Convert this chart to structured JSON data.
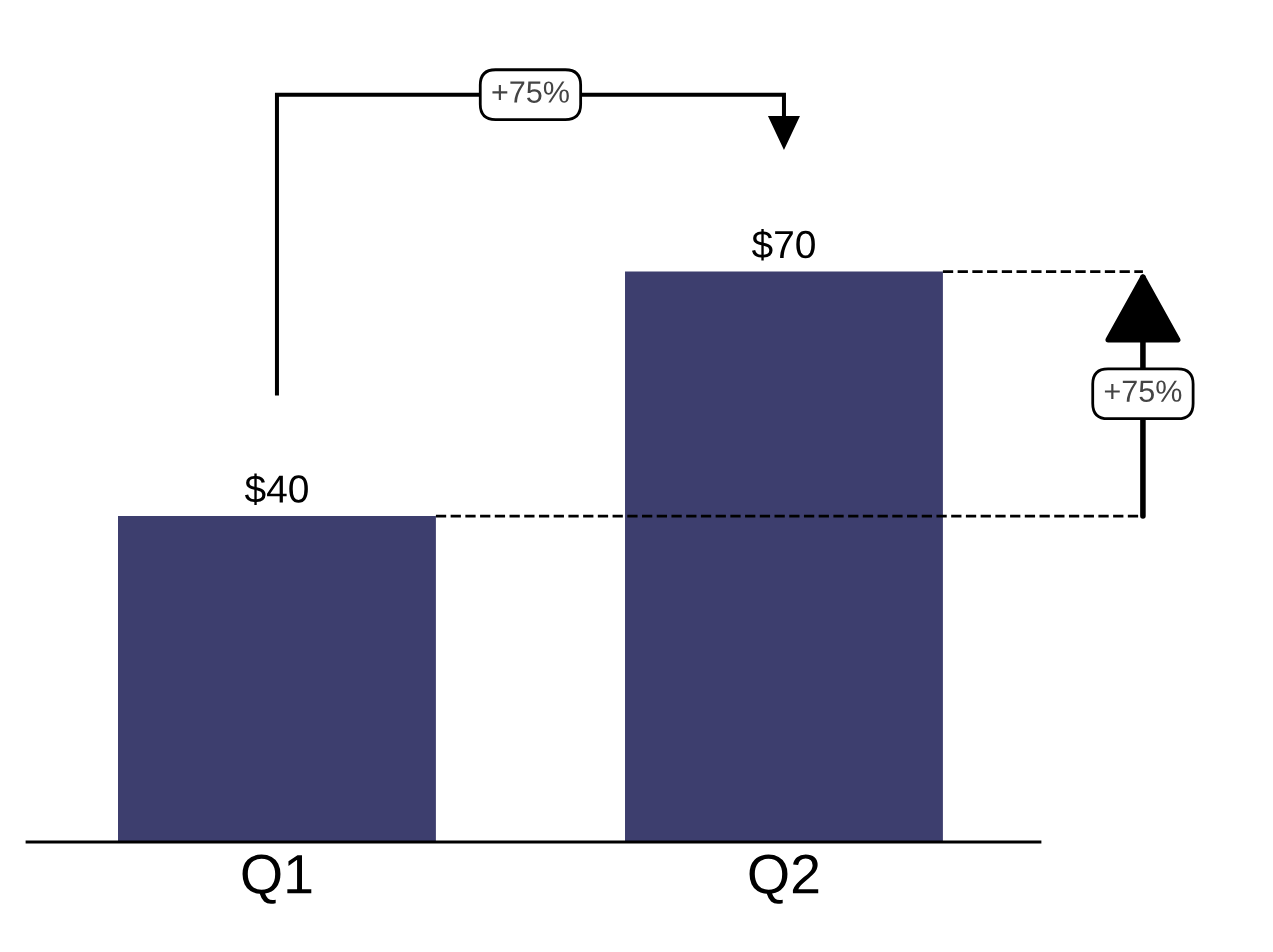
{
  "chart_data": {
    "type": "bar",
    "categories": [
      "Q1",
      "Q2"
    ],
    "values": [
      40,
      70
    ],
    "value_labels": [
      "$40",
      "$70"
    ],
    "color": "#3d3e6e",
    "ref_lines": [
      {
        "axis": "y",
        "value": 40,
        "color": "#000000",
        "line_style": "dashed"
      },
      {
        "axis": "y",
        "value": 70,
        "color": "#000000",
        "line_style": "dashed"
      }
    ],
    "annotations": [
      "+75%",
      "+75%"
    ],
    "grid": false,
    "legend": false
  }
}
